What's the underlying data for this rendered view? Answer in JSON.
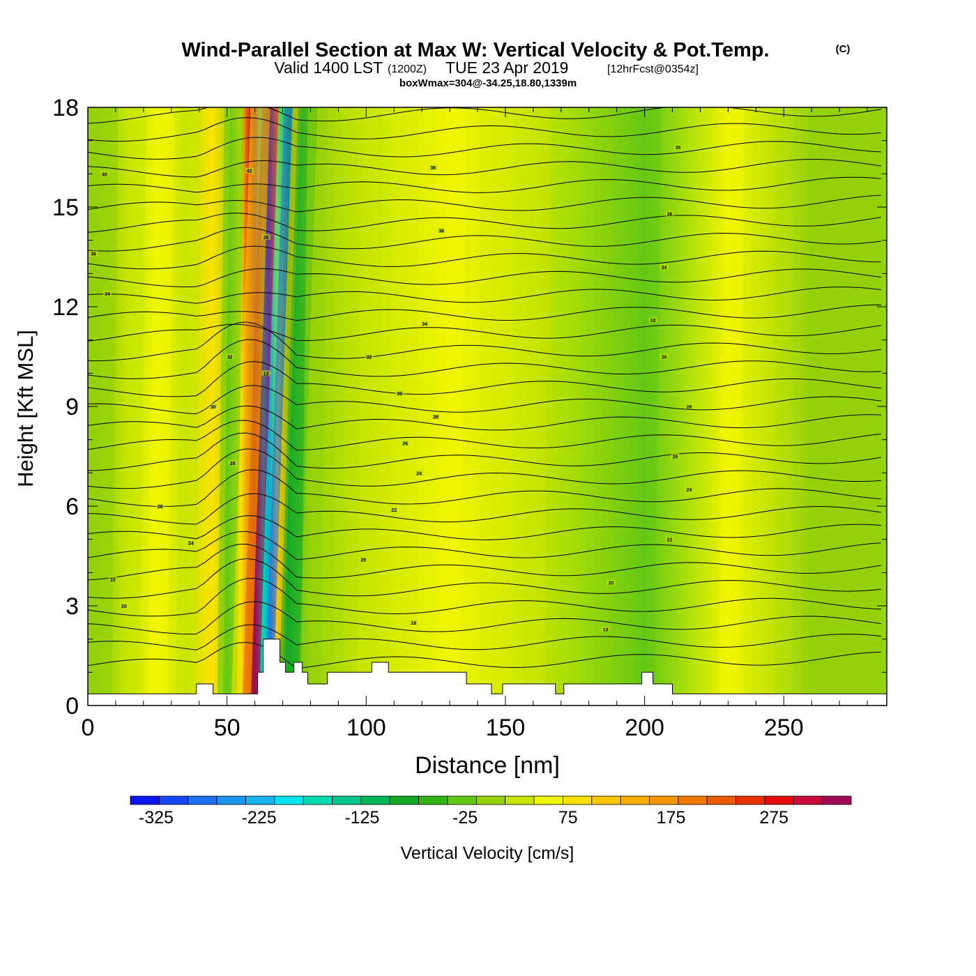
{
  "header": {
    "title": "Wind-Parallel Section at Max W: Vertical Velocity & Pot.Temp.",
    "title_mark": "(C)",
    "valid_prefix": "Valid 1400 LST",
    "valid_utc": "(1200Z)",
    "valid_date": "TUE 23 Apr 2019",
    "valid_fcst": "[12hrFcst@0354z]",
    "box_wmax": "boxWmax=304@-34.25,18.80,1339m"
  },
  "chart_data": {
    "type": "heatmap",
    "xlabel": "Distance [nm]",
    "ylabel": "Height [Kft MSL]",
    "xlim": [
      0,
      287
    ],
    "ylim": [
      0,
      18
    ],
    "x_ticks": [
      0,
      50,
      100,
      150,
      200,
      250
    ],
    "y_ticks": [
      0,
      3,
      6,
      9,
      12,
      15,
      18
    ],
    "colorbar": {
      "label": "Vertical Velocity [cm/s]",
      "min": -350,
      "max": 350,
      "step": 25,
      "tick_values": [
        -325,
        -225,
        -125,
        -25,
        75,
        175,
        275
      ],
      "tick_labels": [
        "-325",
        "-225",
        "-125",
        "-25",
        "75",
        "175",
        "275"
      ],
      "colors": [
        "#0a14f0",
        "#1446f5",
        "#1e6ef0",
        "#1e96f0",
        "#14b4f0",
        "#00e6f0",
        "#00dcb4",
        "#00c88c",
        "#00b45a",
        "#14aa28",
        "#32b414",
        "#64c814",
        "#96d20a",
        "#c8e600",
        "#f0f500",
        "#fae100",
        "#fac800",
        "#f5af00",
        "#f59600",
        "#f07800",
        "#eb5a00",
        "#e63200",
        "#e60a0a",
        "#c80a3c",
        "#a00a50"
      ]
    },
    "background_field": [
      {
        "x": 5,
        "w": -40
      },
      {
        "x": 15,
        "w": -20
      },
      {
        "x": 25,
        "w": 10
      },
      {
        "x": 35,
        "w": -25
      },
      {
        "x": 45,
        "w": 30
      },
      {
        "x": 50,
        "w": -60
      },
      {
        "x": 55,
        "w": 40
      },
      {
        "x": 57,
        "w": 150
      },
      {
        "x": 60,
        "w": 300
      },
      {
        "x": 63,
        "w": -200
      },
      {
        "x": 65,
        "w": -280
      },
      {
        "x": 68,
        "w": 60
      },
      {
        "x": 72,
        "w": -120
      },
      {
        "x": 80,
        "w": -40
      },
      {
        "x": 100,
        "w": -20
      },
      {
        "x": 130,
        "w": 10
      },
      {
        "x": 160,
        "w": -15
      },
      {
        "x": 200,
        "w": -60
      },
      {
        "x": 230,
        "w": 20
      },
      {
        "x": 260,
        "w": -30
      }
    ],
    "theta_contours": [
      {
        "label": "18",
        "label_x": 117,
        "label_y": 2.5
      },
      {
        "label": "18",
        "label_x": 186,
        "label_y": 2.3
      },
      {
        "label": "20",
        "label_x": 13,
        "label_y": 3.0
      },
      {
        "label": "20",
        "label_x": 99,
        "label_y": 4.4
      },
      {
        "label": "20",
        "label_x": 188,
        "label_y": 3.7
      },
      {
        "label": "22",
        "label_x": 9,
        "label_y": 3.8
      },
      {
        "label": "22",
        "label_x": 110,
        "label_y": 5.9
      },
      {
        "label": "22",
        "label_x": 209,
        "label_y": 5.0
      },
      {
        "label": "24",
        "label_x": 37,
        "label_y": 4.9
      },
      {
        "label": "24",
        "label_x": 119,
        "label_y": 7.0
      },
      {
        "label": "24",
        "label_x": 216,
        "label_y": 6.5
      },
      {
        "label": "26",
        "label_x": 26,
        "label_y": 6.0
      },
      {
        "label": "26",
        "label_x": 114,
        "label_y": 7.9
      },
      {
        "label": "26",
        "label_x": 211,
        "label_y": 7.5
      },
      {
        "label": "28",
        "label_x": 52,
        "label_y": 7.3
      },
      {
        "label": "28",
        "label_x": 125,
        "label_y": 8.7
      },
      {
        "label": "28",
        "label_x": 216,
        "label_y": 9.0
      },
      {
        "label": "30",
        "label_x": 45,
        "label_y": 9.0
      },
      {
        "label": "30",
        "label_x": 112,
        "label_y": 9.4
      },
      {
        "label": "30",
        "label_x": 207,
        "label_y": 10.5
      },
      {
        "label": "32",
        "label_x": 51,
        "label_y": 10.5
      },
      {
        "label": "32",
        "label_x": 101,
        "label_y": 10.5
      },
      {
        "label": "32",
        "label_x": 203,
        "label_y": 11.6
      },
      {
        "label": "34",
        "label_x": 7,
        "label_y": 12.4
      },
      {
        "label": "34",
        "label_x": 121,
        "label_y": 11.5
      },
      {
        "label": "34",
        "label_x": 207,
        "label_y": 13.2
      },
      {
        "label": "36",
        "label_x": 2,
        "label_y": 13.6
      },
      {
        "label": "36",
        "label_x": 127,
        "label_y": 14.3
      },
      {
        "label": "36",
        "label_x": 209,
        "label_y": 14.8
      },
      {
        "label": "38",
        "label_x": 124,
        "label_y": 16.2
      },
      {
        "label": "38",
        "label_x": 212,
        "label_y": 16.8
      },
      {
        "label": "40",
        "label_x": 6,
        "label_y": 16.0
      },
      {
        "label": "42",
        "label_x": 58,
        "label_y": 16.1
      },
      {
        "label": "12",
        "label_x": 64,
        "label_y": 10.0
      },
      {
        "label": "26",
        "label_x": 64,
        "label_y": 14.1
      }
    ],
    "terrain_profile": [
      [
        0,
        0.35
      ],
      [
        39,
        0.35
      ],
      [
        39,
        0.65
      ],
      [
        45,
        0.65
      ],
      [
        45,
        0.35
      ],
      [
        61,
        0.35
      ],
      [
        61,
        1.0
      ],
      [
        63,
        1.0
      ],
      [
        63,
        2.0
      ],
      [
        69,
        2.0
      ],
      [
        69,
        1.3
      ],
      [
        71,
        1.3
      ],
      [
        71,
        1.0
      ],
      [
        74,
        1.0
      ],
      [
        74,
        1.3
      ],
      [
        77,
        1.3
      ],
      [
        77,
        1.0
      ],
      [
        79,
        1.0
      ],
      [
        79,
        0.65
      ],
      [
        86,
        0.65
      ],
      [
        86,
        1.0
      ],
      [
        102,
        1.0
      ],
      [
        102,
        1.3
      ],
      [
        108,
        1.3
      ],
      [
        108,
        1.0
      ],
      [
        136,
        1.0
      ],
      [
        136,
        0.65
      ],
      [
        145,
        0.65
      ],
      [
        145,
        0.35
      ],
      [
        149,
        0.35
      ],
      [
        149,
        0.65
      ],
      [
        168,
        0.65
      ],
      [
        168,
        0.35
      ],
      [
        171,
        0.35
      ],
      [
        171,
        0.65
      ],
      [
        199,
        0.65
      ],
      [
        199,
        1.0
      ],
      [
        203,
        1.0
      ],
      [
        203,
        0.65
      ],
      [
        210,
        0.65
      ],
      [
        210,
        0.35
      ],
      [
        287,
        0.35
      ]
    ]
  }
}
